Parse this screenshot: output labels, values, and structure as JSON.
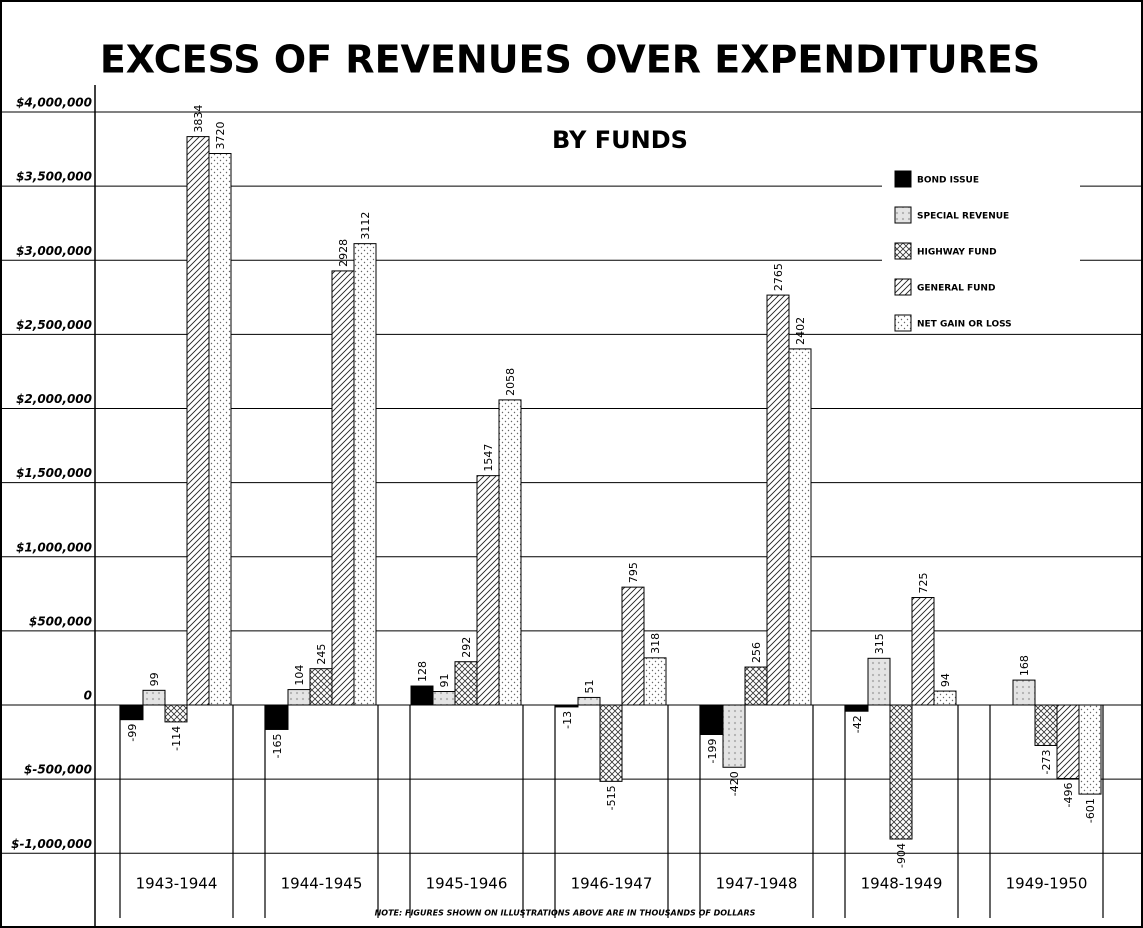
{
  "chart_data": {
    "type": "bar",
    "title": "EXCESS OF REVENUES OVER EXPENDITURES",
    "subtitle": "BY FUNDS",
    "note": "NOTE: FIGURES SHOWN ON ILLUSTRATIONS ABOVE ARE IN THOUSANDS OF DOLLARS",
    "categories": [
      "1943-1944",
      "1944-1945",
      "1945-1946",
      "1946-1947",
      "1947-1948",
      "1948-1949",
      "1949-1950"
    ],
    "series": [
      {
        "name": "BOND ISSUE",
        "color": "#000000",
        "pattern": "solid",
        "values": [
          -99000,
          -165000,
          128000,
          -13000,
          -199000,
          -42000,
          null
        ],
        "value_labels": [
          "-99",
          "-165",
          "128",
          "-13",
          "-199",
          "-42",
          null
        ]
      },
      {
        "name": "SPECIAL REVENUE",
        "color": "#b0b0b0",
        "pattern": "dots",
        "values": [
          99000,
          104000,
          91000,
          51000,
          -420000,
          315000,
          168000
        ],
        "value_labels": [
          "99",
          "104",
          "91",
          "51",
          "-420",
          "315",
          "168"
        ]
      },
      {
        "name": "HIGHWAY FUND",
        "color": "#333333",
        "pattern": "crosshatch",
        "values": [
          -114000,
          245000,
          292000,
          -515000,
          256000,
          -904000,
          -273000
        ],
        "value_labels": [
          "-114",
          "245",
          "292",
          "-515",
          "256",
          "-904",
          "-273"
        ]
      },
      {
        "name": "GENERAL FUND",
        "color": "#222222",
        "pattern": "diagonal",
        "values": [
          3834000,
          2928000,
          1547000,
          795000,
          2765000,
          725000,
          -496000
        ],
        "value_labels": [
          "3834",
          "2928",
          "1547",
          "795",
          "2765",
          "725",
          "-496"
        ]
      },
      {
        "name": "NET GAIN OR LOSS",
        "color": "#666666",
        "pattern": "fine-dots",
        "values": [
          3720000,
          3112000,
          2058000,
          318000,
          2402000,
          94000,
          -601000
        ],
        "value_labels": [
          "3720",
          "3112",
          "2058",
          "318",
          "2402",
          "94",
          "-601"
        ]
      }
    ],
    "ylim": [
      -1000000,
      4000000
    ],
    "yticks": [
      {
        "value": 4000000,
        "label": "$4,000,000"
      },
      {
        "value": 3500000,
        "label": "$3,500,000"
      },
      {
        "value": 3000000,
        "label": "$3,000,000"
      },
      {
        "value": 2500000,
        "label": "$2,500,000"
      },
      {
        "value": 2000000,
        "label": "$2,000,000"
      },
      {
        "value": 1500000,
        "label": "$1,500,000"
      },
      {
        "value": 1000000,
        "label": "$1,000,000"
      },
      {
        "value": 500000,
        "label": "$500,000"
      },
      0,
      {
        "value": -500000,
        "label": "$-500,000"
      },
      {
        "value": -1000000,
        "label": "$-1,000,000"
      }
    ],
    "grid": true,
    "legend": "upper right"
  }
}
